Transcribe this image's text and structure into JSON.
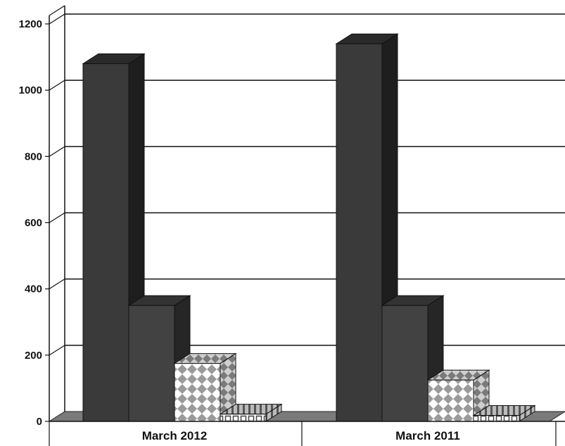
{
  "chart_data": {
    "type": "bar",
    "style": "3d-clustered",
    "categories": [
      "March 2012",
      "March 2011"
    ],
    "series": [
      {
        "values": [
          1080,
          1140
        ],
        "color": "#353535",
        "pattern": "solid"
      },
      {
        "values": [
          350,
          350
        ],
        "color": "#404040",
        "pattern": "solid"
      },
      {
        "values": [
          175,
          125
        ],
        "color": "#9a9a9a",
        "pattern": "diamonds"
      },
      {
        "values": [
          22,
          18
        ],
        "color": "#8c8c8c",
        "pattern": "blocks"
      }
    ],
    "y_ticks": [
      "0",
      "200",
      "400",
      "600",
      "800",
      "1000",
      "1200"
    ],
    "ylim": [
      0,
      1200
    ],
    "title": "",
    "xlabel": "",
    "ylabel": "",
    "grid": true,
    "legend": "none",
    "colors": {
      "floor": "#7a7a7a",
      "grid": "#111111",
      "background": "#ffffff"
    }
  }
}
